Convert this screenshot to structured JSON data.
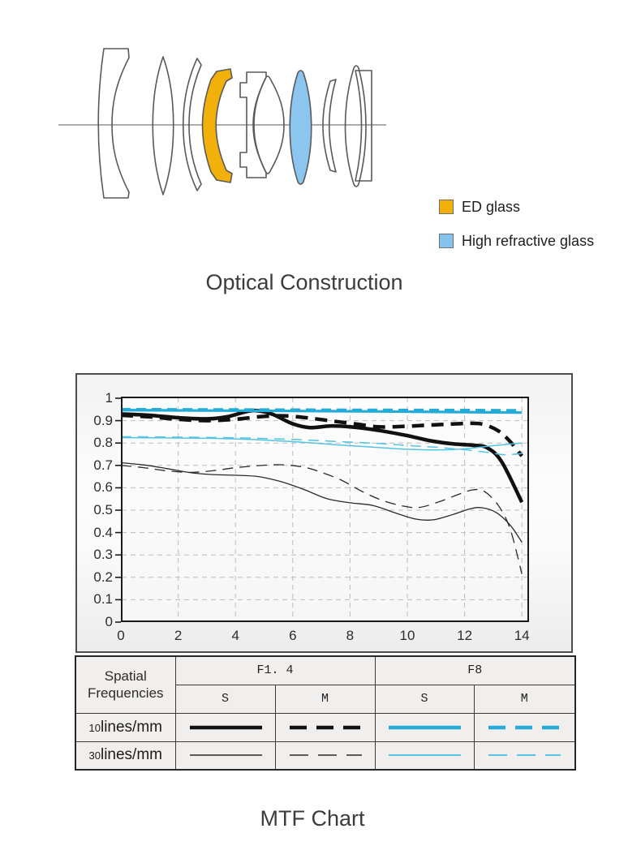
{
  "optical": {
    "title": "Optical Construction",
    "legend": [
      {
        "label": "ED glass",
        "color": "#F2B10A"
      },
      {
        "label": "High refractive glass",
        "color": "#85C3EF"
      }
    ],
    "colors": {
      "outline": "#58595b",
      "axis": "#7a7a7a",
      "ed": "#F2B10A",
      "high_refractive": "#8CC5EE"
    },
    "elements": [
      {
        "name": "ED glass element",
        "highlight": "ED"
      },
      {
        "name": "High refractive glass element",
        "highlight": "high-refractive"
      }
    ]
  },
  "mtf": {
    "title": "MTF Chart",
    "table": {
      "corner_label": "Spatial Frequencies",
      "groups": [
        "F1. 4",
        "F8"
      ],
      "subheaders": [
        "S",
        "M",
        "S",
        "M"
      ],
      "rows": [
        {
          "num": "10",
          "unit": "lines/mm",
          "series_indexes": [
            0,
            1,
            2,
            3
          ]
        },
        {
          "num": "30",
          "unit": "lines/mm",
          "series_indexes": [
            4,
            5,
            6,
            7
          ]
        }
      ]
    }
  },
  "chart_data": {
    "type": "line",
    "title": "MTF Chart",
    "xlabel": "",
    "ylabel": "",
    "xlim": [
      0,
      14.25
    ],
    "ylim": [
      0,
      1
    ],
    "grid": true,
    "x_ticks": [
      0,
      2,
      4,
      6,
      8,
      10,
      12,
      14
    ],
    "y_ticks": [
      0,
      0.1,
      0.2,
      0.3,
      0.4,
      0.5,
      0.6,
      0.7,
      0.8,
      0.9,
      1
    ],
    "y_tick_labels": [
      "0",
      "0.1",
      "0.2",
      "0.3",
      "0.4",
      "0.5",
      "0.6",
      "0.7",
      "0.8",
      "0.9",
      "1"
    ],
    "grid_color": "#bdbdbd",
    "series": [
      {
        "name": "F1.4 S 10 lines/mm",
        "aperture": "F1. 4",
        "orientation": "S",
        "frequency": "10 lines/mm",
        "color": "#111111",
        "width": 4.5,
        "dash": "",
        "points": [
          [
            0,
            0.93
          ],
          [
            1,
            0.924
          ],
          [
            2,
            0.913
          ],
          [
            3,
            0.908
          ],
          [
            3.7,
            0.917
          ],
          [
            4.4,
            0.941
          ],
          [
            4.8,
            0.944
          ],
          [
            5.3,
            0.928
          ],
          [
            6,
            0.886
          ],
          [
            6.6,
            0.869
          ],
          [
            7.3,
            0.876
          ],
          [
            8,
            0.872
          ],
          [
            9,
            0.856
          ],
          [
            10,
            0.833
          ],
          [
            10.8,
            0.81
          ],
          [
            11.6,
            0.796
          ],
          [
            12.3,
            0.79
          ],
          [
            12.8,
            0.778
          ],
          [
            13.3,
            0.715
          ],
          [
            14,
            0.535
          ]
        ]
      },
      {
        "name": "F1.4 M 10 lines/mm",
        "aperture": "F1. 4",
        "orientation": "M",
        "frequency": "10 lines/mm",
        "color": "#111111",
        "width": 4.5,
        "dash": "15 9",
        "points": [
          [
            0,
            0.924
          ],
          [
            1,
            0.917
          ],
          [
            2,
            0.906
          ],
          [
            3,
            0.9
          ],
          [
            4,
            0.906
          ],
          [
            5,
            0.919
          ],
          [
            5.8,
            0.921
          ],
          [
            6.6,
            0.911
          ],
          [
            7.4,
            0.898
          ],
          [
            8.2,
            0.885
          ],
          [
            9,
            0.872
          ],
          [
            9.8,
            0.874
          ],
          [
            10.6,
            0.879
          ],
          [
            11.4,
            0.884
          ],
          [
            12.2,
            0.888
          ],
          [
            12.7,
            0.882
          ],
          [
            13.2,
            0.852
          ],
          [
            13.6,
            0.805
          ],
          [
            14,
            0.742
          ]
        ]
      },
      {
        "name": "F8 S 10 lines/mm",
        "aperture": "F8",
        "orientation": "S",
        "frequency": "10 lines/mm",
        "color": "#25ABD7",
        "width": 3.2,
        "dash": "",
        "points": [
          [
            0,
            0.947
          ],
          [
            3,
            0.945
          ],
          [
            6,
            0.943
          ],
          [
            9,
            0.941
          ],
          [
            12,
            0.938
          ],
          [
            14,
            0.936
          ]
        ]
      },
      {
        "name": "F8 M 10 lines/mm",
        "aperture": "F8",
        "orientation": "M",
        "frequency": "10 lines/mm",
        "color": "#25ABD7",
        "width": 3.2,
        "dash": "12 7",
        "points": [
          [
            0,
            0.951
          ],
          [
            3,
            0.95
          ],
          [
            6,
            0.949
          ],
          [
            9,
            0.948
          ],
          [
            12,
            0.947
          ],
          [
            14,
            0.946
          ]
        ]
      },
      {
        "name": "F1.4 S 30 lines/mm",
        "aperture": "F1. 4",
        "orientation": "S",
        "frequency": "30 lines/mm",
        "color": "#2a2a2a",
        "width": 1.3,
        "dash": "",
        "points": [
          [
            0,
            0.712
          ],
          [
            0.8,
            0.702
          ],
          [
            1.6,
            0.686
          ],
          [
            2.4,
            0.668
          ],
          [
            3.2,
            0.659
          ],
          [
            4,
            0.656
          ],
          [
            4.8,
            0.65
          ],
          [
            5.6,
            0.627
          ],
          [
            6.4,
            0.592
          ],
          [
            7.2,
            0.551
          ],
          [
            8,
            0.533
          ],
          [
            8.8,
            0.521
          ],
          [
            9.6,
            0.487
          ],
          [
            10.3,
            0.46
          ],
          [
            10.9,
            0.457
          ],
          [
            11.6,
            0.481
          ],
          [
            12.2,
            0.506
          ],
          [
            12.6,
            0.511
          ],
          [
            13.1,
            0.49
          ],
          [
            13.6,
            0.432
          ],
          [
            14,
            0.357
          ]
        ]
      },
      {
        "name": "F1.4 M 30 lines/mm",
        "aperture": "F1. 4",
        "orientation": "M",
        "frequency": "30 lines/mm",
        "color": "#2a2a2a",
        "width": 1.3,
        "dash": "13 8",
        "points": [
          [
            0,
            0.7
          ],
          [
            0.8,
            0.69
          ],
          [
            1.6,
            0.676
          ],
          [
            2.4,
            0.669
          ],
          [
            3.2,
            0.676
          ],
          [
            4,
            0.69
          ],
          [
            4.8,
            0.699
          ],
          [
            5.6,
            0.703
          ],
          [
            6.4,
            0.692
          ],
          [
            7,
            0.669
          ],
          [
            7.7,
            0.634
          ],
          [
            8.4,
            0.585
          ],
          [
            9.1,
            0.545
          ],
          [
            9.8,
            0.52
          ],
          [
            10.4,
            0.512
          ],
          [
            11.1,
            0.537
          ],
          [
            11.8,
            0.571
          ],
          [
            12.3,
            0.591
          ],
          [
            12.7,
            0.583
          ],
          [
            13.2,
            0.517
          ],
          [
            13.6,
            0.412
          ],
          [
            14,
            0.215
          ]
        ]
      },
      {
        "name": "F8 S 30 lines/mm",
        "aperture": "F8",
        "orientation": "S",
        "frequency": "30 lines/mm",
        "color": "#55C3E2",
        "width": 1.5,
        "dash": "",
        "points": [
          [
            0,
            0.824
          ],
          [
            1.5,
            0.823
          ],
          [
            3,
            0.821
          ],
          [
            4.5,
            0.816
          ],
          [
            6,
            0.806
          ],
          [
            7,
            0.797
          ],
          [
            8,
            0.788
          ],
          [
            9,
            0.78
          ],
          [
            10,
            0.772
          ],
          [
            11,
            0.769
          ],
          [
            12,
            0.774
          ],
          [
            13,
            0.788
          ],
          [
            14,
            0.8
          ]
        ]
      },
      {
        "name": "F8 M 30 lines/mm",
        "aperture": "F8",
        "orientation": "M",
        "frequency": "30 lines/mm",
        "color": "#55C3E2",
        "width": 1.5,
        "dash": "13 8",
        "points": [
          [
            0,
            0.828
          ],
          [
            1.5,
            0.827
          ],
          [
            3,
            0.825
          ],
          [
            4.5,
            0.822
          ],
          [
            6,
            0.816
          ],
          [
            7.5,
            0.807
          ],
          [
            9,
            0.798
          ],
          [
            10,
            0.789
          ],
          [
            11,
            0.781
          ],
          [
            12,
            0.77
          ],
          [
            12.8,
            0.758
          ],
          [
            13.4,
            0.748
          ],
          [
            14,
            0.753
          ]
        ]
      }
    ]
  }
}
